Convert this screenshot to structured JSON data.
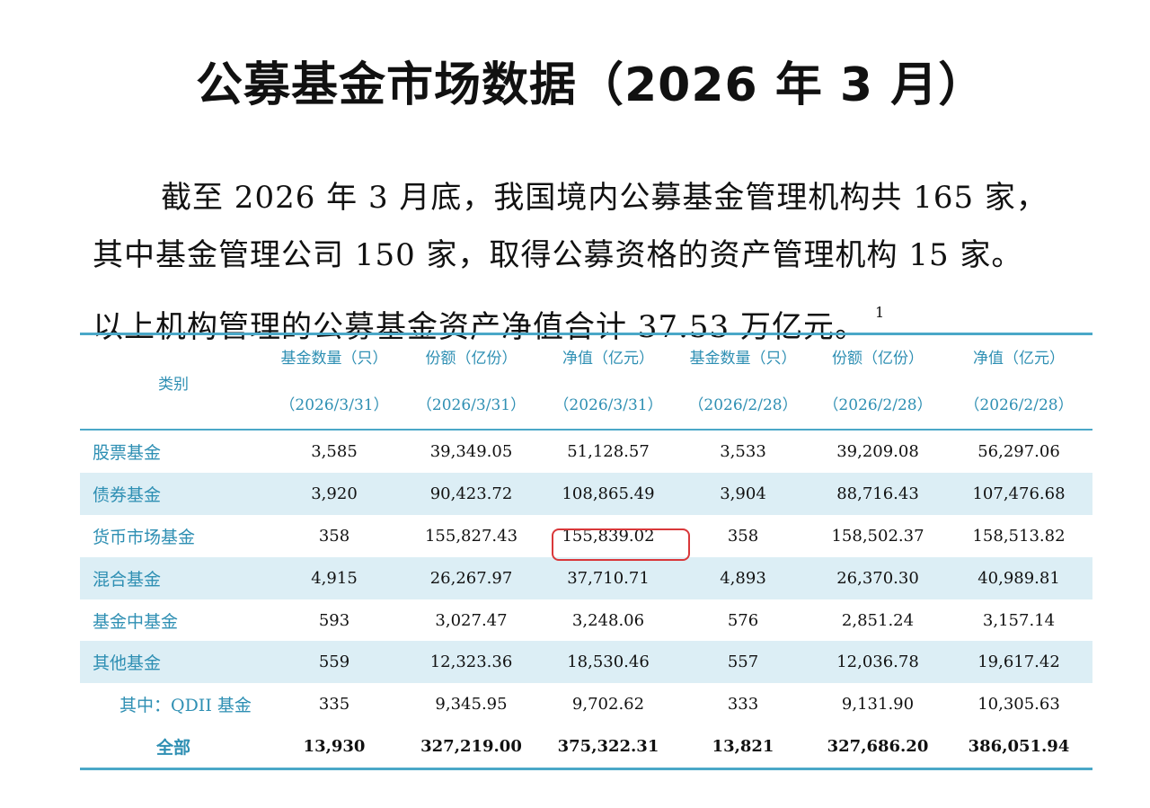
{
  "title": "公募基金市场数据（2026 年 3 月）",
  "paragraph": {
    "line1": "截至 2026 年 3 月底，我国境内公募基金管理机构共 165 家，",
    "line2": "其中基金管理公司 150 家，取得公募资格的资产管理机构 15 家。",
    "line3": "以上机构管理的公募基金资产净值合计 37.53 万亿元。",
    "footnote": "1"
  },
  "table": {
    "header": {
      "category": "类别",
      "columns": [
        {
          "name": "基金数量（只）",
          "date": "（2026/3/31）"
        },
        {
          "name": "份额（亿份）",
          "date": "（2026/3/31）"
        },
        {
          "name": "净值（亿元）",
          "date": "（2026/3/31）"
        },
        {
          "name": "基金数量（只）",
          "date": "（2026/2/28）"
        },
        {
          "name": "份额（亿份）",
          "date": "（2026/2/28）"
        },
        {
          "name": "净值（亿元）",
          "date": "（2026/2/28）"
        }
      ]
    },
    "rows": [
      {
        "category": "股票基金",
        "values": [
          "3,585",
          "39,349.05",
          "51,128.57",
          "3,533",
          "39,209.08",
          "56,297.06"
        ]
      },
      {
        "category": "债券基金",
        "values": [
          "3,920",
          "90,423.72",
          "108,865.49",
          "3,904",
          "88,716.43",
          "107,476.68"
        ]
      },
      {
        "category": "货币市场基金",
        "values": [
          "358",
          "155,827.43",
          "155,839.02",
          "358",
          "158,502.37",
          "158,513.82"
        ]
      },
      {
        "category": "混合基金",
        "values": [
          "4,915",
          "26,267.97",
          "37,710.71",
          "4,893",
          "26,370.30",
          "40,989.81"
        ]
      },
      {
        "category": "基金中基金",
        "values": [
          "593",
          "3,027.47",
          "3,248.06",
          "576",
          "2,851.24",
          "3,157.14"
        ]
      },
      {
        "category": "其他基金",
        "values": [
          "559",
          "12,323.36",
          "18,530.46",
          "557",
          "12,036.78",
          "19,617.42"
        ]
      },
      {
        "category": "其中：QDII 基金",
        "values": [
          "335",
          "9,345.95",
          "9,702.62",
          "333",
          "9,131.90",
          "10,305.63"
        ]
      },
      {
        "category": "全部",
        "values": [
          "13,930",
          "327,219.00",
          "375,322.31",
          "13,821",
          "327,686.20",
          "386,051.94"
        ]
      }
    ]
  },
  "colors": {
    "accent": "#2e8fb3",
    "shade": "#dceef5",
    "highlight": "#d9383a"
  }
}
